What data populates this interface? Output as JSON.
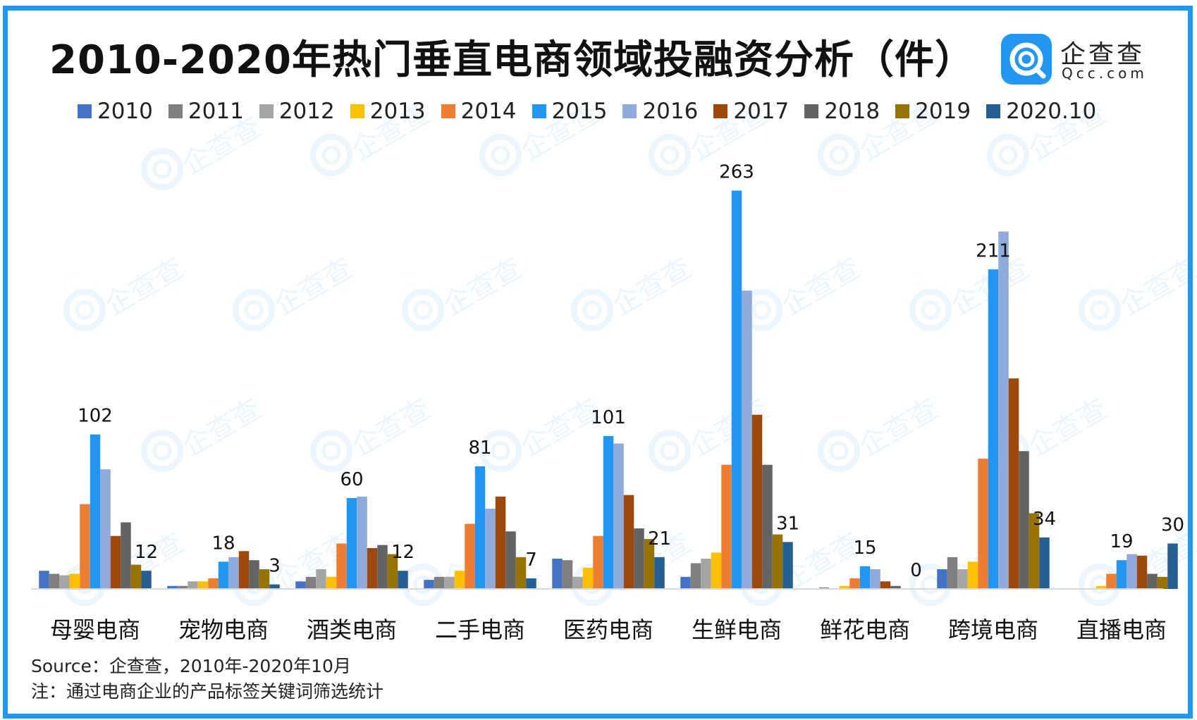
{
  "chart_data": {
    "type": "bar",
    "title": "2010-2020年热门垂直电商领域投融资分析（件）",
    "categories": [
      "母婴电商",
      "宠物电商",
      "酒类电商",
      "二手电商",
      "医药电商",
      "生鲜电商",
      "鲜花电商",
      "跨境电商",
      "直播电商"
    ],
    "series": [
      {
        "name": "2010",
        "color": "#4472c4",
        "values": [
          12,
          2,
          5,
          6,
          20,
          8,
          0,
          13,
          0
        ]
      },
      {
        "name": "2011",
        "color": "#7f7f7f",
        "values": [
          10,
          2,
          8,
          8,
          19,
          17,
          1,
          21,
          0
        ]
      },
      {
        "name": "2012",
        "color": "#a5a5a5",
        "values": [
          9,
          5,
          13,
          8,
          8,
          20,
          0,
          13,
          0
        ]
      },
      {
        "name": "2013",
        "color": "#ffc000",
        "values": [
          10,
          5,
          8,
          12,
          14,
          24,
          2,
          18,
          2
        ]
      },
      {
        "name": "2014",
        "color": "#ed7d31",
        "values": [
          56,
          7,
          30,
          43,
          35,
          82,
          7,
          86,
          10
        ]
      },
      {
        "name": "2015",
        "color": "#2196f3",
        "values": [
          102,
          18,
          60,
          81,
          101,
          263,
          15,
          211,
          19
        ]
      },
      {
        "name": "2016",
        "color": "#8faadc",
        "values": [
          79,
          21,
          61,
          53,
          96,
          197,
          13,
          236,
          23
        ]
      },
      {
        "name": "2017",
        "color": "#9e480e",
        "values": [
          35,
          25,
          27,
          61,
          62,
          115,
          5,
          139,
          22
        ]
      },
      {
        "name": "2018",
        "color": "#636363",
        "values": [
          44,
          19,
          29,
          38,
          40,
          82,
          2,
          91,
          10
        ]
      },
      {
        "name": "2019",
        "color": "#997300",
        "values": [
          16,
          13,
          23,
          21,
          33,
          36,
          0,
          50,
          8
        ]
      },
      {
        "name": "2020.10",
        "color": "#255e91",
        "values": [
          12,
          3,
          12,
          7,
          21,
          31,
          0,
          34,
          30
        ]
      }
    ],
    "labels": [
      {
        "category": 0,
        "series": "2015",
        "value": 102
      },
      {
        "category": 0,
        "series": "2020.10",
        "value": 12
      },
      {
        "category": 1,
        "series": "2015",
        "value": 18
      },
      {
        "category": 1,
        "series": "2020.10",
        "value": 3
      },
      {
        "category": 2,
        "series": "2015",
        "value": 60
      },
      {
        "category": 2,
        "series": "2020.10",
        "value": 12
      },
      {
        "category": 3,
        "series": "2015",
        "value": 81
      },
      {
        "category": 3,
        "series": "2020.10",
        "value": 7
      },
      {
        "category": 4,
        "series": "2015",
        "value": 101
      },
      {
        "category": 4,
        "series": "2020.10",
        "value": 21
      },
      {
        "category": 5,
        "series": "2015",
        "value": 263
      },
      {
        "category": 5,
        "series": "2020.10",
        "value": 31
      },
      {
        "category": 6,
        "series": "2015",
        "value": 15
      },
      {
        "category": 6,
        "series": "2020.10",
        "value": 0
      },
      {
        "category": 7,
        "series": "2015",
        "value": 211
      },
      {
        "category": 7,
        "series": "2020.10",
        "value": 34
      },
      {
        "category": 8,
        "series": "2015",
        "value": 19
      },
      {
        "category": 8,
        "series": "2020.10",
        "value": 30
      }
    ],
    "ylim": [
      0,
      300
    ],
    "grid": false,
    "legend": "top"
  },
  "brand": {
    "name": "企查查",
    "url": "Qcc.com",
    "watermark": "企查查",
    "color": "#2196f3"
  },
  "footer": {
    "source": "Source：企查查，2010年-2020年10月",
    "note": "注：通过电商企业的产品标签关键词筛选统计"
  }
}
